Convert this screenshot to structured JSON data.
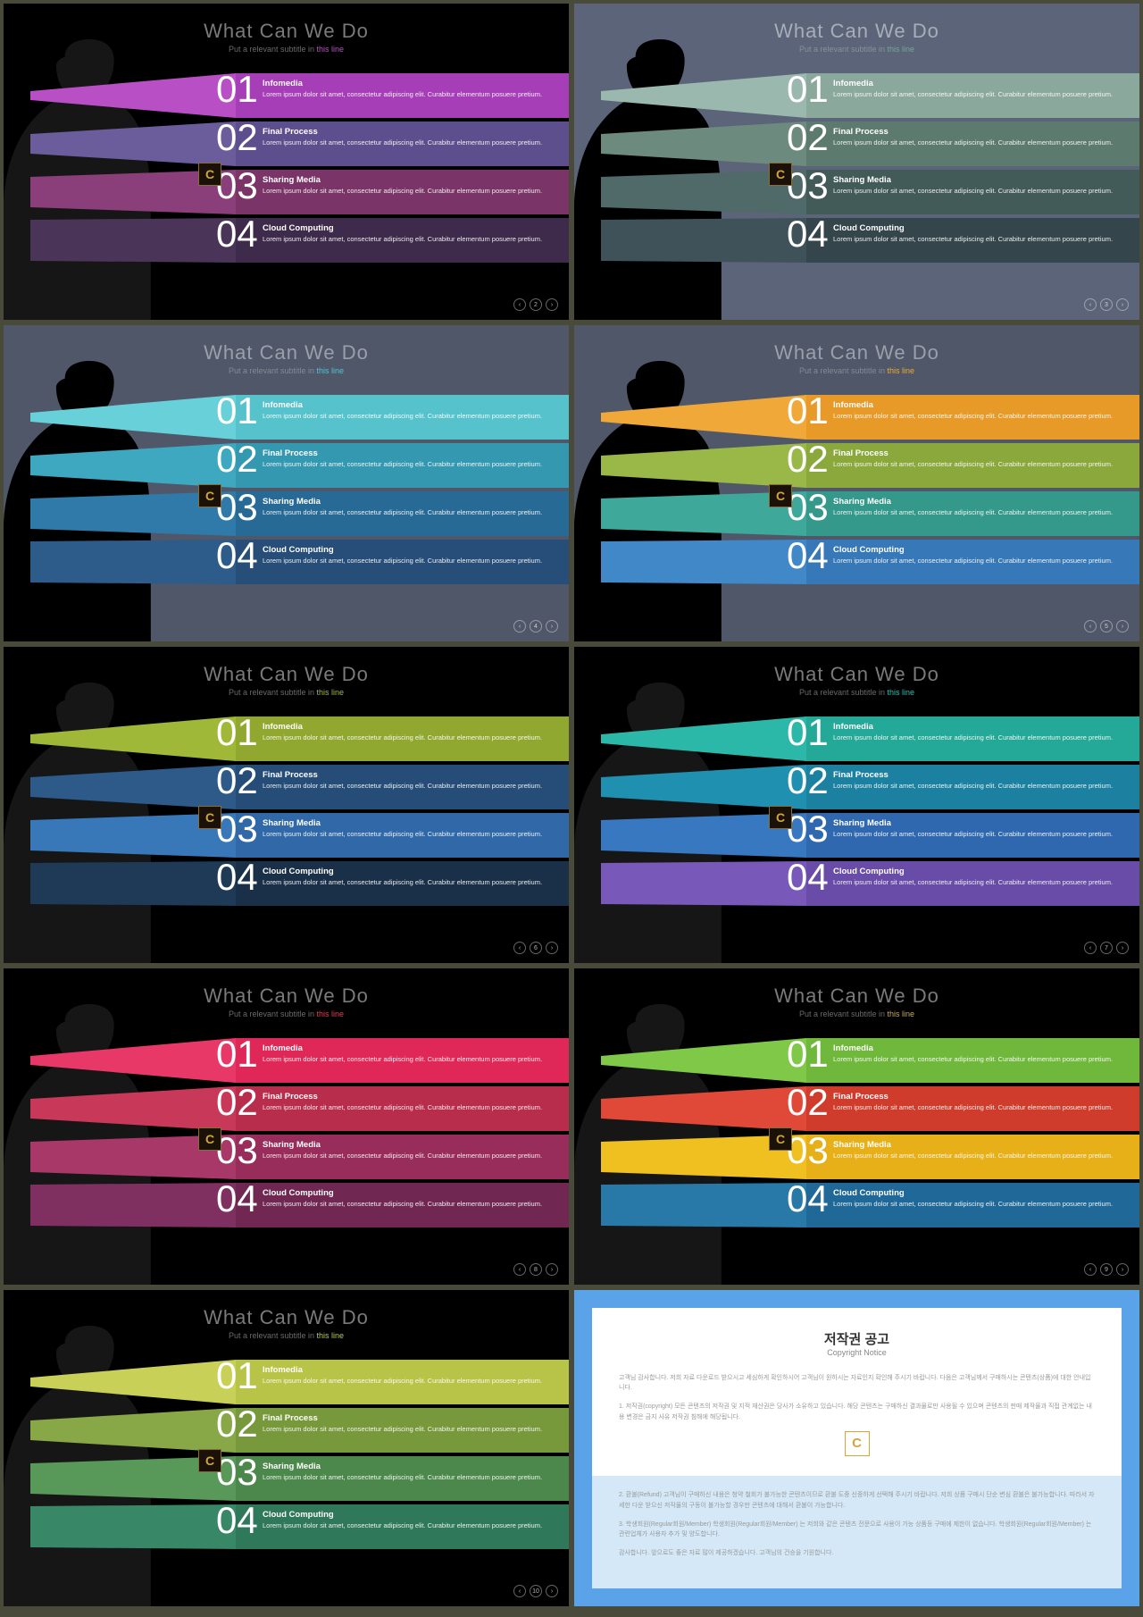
{
  "frame_border": "#4a4a3a",
  "common": {
    "title": "What Can We Do",
    "subtitle_prefix": "Put a relevant subtitle in ",
    "subtitle_accent": "this line",
    "numbers": [
      "01",
      "02",
      "03",
      "04"
    ],
    "items": [
      {
        "title": "Infomedia",
        "desc": "Lorem ipsum dolor sit amet, consectetur adipiscing elit. Curabitur elementum posuere pretium."
      },
      {
        "title": "Final Process",
        "desc": "Lorem ipsum dolor sit amet, consectetur adipiscing elit. Curabitur elementum posuere pretium."
      },
      {
        "title": "Sharing Media",
        "desc": "Lorem ipsum dolor sit amet, consectetur adipiscing elit. Curabitur elementum posuere pretium."
      },
      {
        "title": "Cloud Computing",
        "desc": "Lorem ipsum dolor sit amet, consectetur adipiscing elit. Curabitur elementum posuere pretium."
      }
    ],
    "logo_letter": "C",
    "pager_symbols": [
      "‹",
      "",
      "›"
    ]
  },
  "slides": [
    {
      "page": "2",
      "bg": "#000000",
      "title_color": "#7a7a7a",
      "sub_color": "#6a6a6a",
      "accent_color": "#b84fc4",
      "silhouette_color": "#161616",
      "bands": [
        {
          "wedge": "#b84fc4",
          "flat": "#a63eb8"
        },
        {
          "wedge": "#6b5d9b",
          "flat": "#5d4f8d"
        },
        {
          "wedge": "#8a3e7a",
          "flat": "#7a3468"
        },
        {
          "wedge": "#4a3458",
          "flat": "#3e2a4a"
        }
      ]
    },
    {
      "page": "3",
      "bg": "#5b6478",
      "title_color": "#a8aeb8",
      "sub_color": "#8a909a",
      "accent_color": "#6fa89a",
      "silhouette_color": "#000000",
      "bands": [
        {
          "wedge": "#9ab8ad",
          "flat": "#8aa89c"
        },
        {
          "wedge": "#6d8a7f",
          "flat": "#5d7a6f"
        },
        {
          "wedge": "#4f6a68",
          "flat": "#425a58"
        },
        {
          "wedge": "#3f525a",
          "flat": "#34454c"
        }
      ]
    },
    {
      "page": "4",
      "bg": "#4f5768",
      "title_color": "#9aa0ab",
      "sub_color": "#848a94",
      "accent_color": "#4fc4d4",
      "silhouette_color": "#000000",
      "bands": [
        {
          "wedge": "#68d0d8",
          "flat": "#56c2cc"
        },
        {
          "wedge": "#3ea8c0",
          "flat": "#3498b0"
        },
        {
          "wedge": "#2f7aa8",
          "flat": "#286a96"
        },
        {
          "wedge": "#2d5b8a",
          "flat": "#264e78"
        }
      ]
    },
    {
      "page": "5",
      "bg": "#4f5768",
      "title_color": "#9aa0ab",
      "sub_color": "#848a94",
      "accent_color": "#f0a838",
      "silhouette_color": "#000000",
      "bands": [
        {
          "wedge": "#f0a838",
          "flat": "#e89a28"
        },
        {
          "wedge": "#9ab848",
          "flat": "#8aa83c"
        },
        {
          "wedge": "#3ea89a",
          "flat": "#34988a"
        },
        {
          "wedge": "#4088c8",
          "flat": "#3678b8"
        }
      ]
    },
    {
      "page": "6",
      "bg": "#000000",
      "title_color": "#7a7a7a",
      "sub_color": "#6a6a6a",
      "accent_color": "#a0b838",
      "silhouette_color": "#161616",
      "bands": [
        {
          "wedge": "#a0b838",
          "flat": "#90a830"
        },
        {
          "wedge": "#2d5a88",
          "flat": "#264d78"
        },
        {
          "wedge": "#3878b8",
          "flat": "#3068a8"
        },
        {
          "wedge": "#1f3a56",
          "flat": "#1a3048"
        }
      ]
    },
    {
      "page": "7",
      "bg": "#000000",
      "title_color": "#7a7a7a",
      "sub_color": "#6a6a6a",
      "accent_color": "#28c0b0",
      "silhouette_color": "#161616",
      "bands": [
        {
          "wedge": "#2cb8a8",
          "flat": "#24a898"
        },
        {
          "wedge": "#2090b0",
          "flat": "#1c80a0"
        },
        {
          "wedge": "#3878c0",
          "flat": "#3068b0"
        },
        {
          "wedge": "#7858b8",
          "flat": "#684ca8"
        }
      ]
    },
    {
      "page": "8",
      "bg": "#000000",
      "title_color": "#7a7a7a",
      "sub_color": "#6a6a6a",
      "accent_color": "#e8385a",
      "silhouette_color": "#161616",
      "bands": [
        {
          "wedge": "#e83868",
          "flat": "#e02858"
        },
        {
          "wedge": "#c83858",
          "flat": "#b82c4c"
        },
        {
          "wedge": "#a83868",
          "flat": "#982c5a"
        },
        {
          "wedge": "#803060",
          "flat": "#702852"
        }
      ]
    },
    {
      "page": "9",
      "bg": "#000000",
      "title_color": "#7a7a7a",
      "sub_color": "#6a6a6a",
      "accent_color": "#c8a858",
      "silhouette_color": "#161616",
      "bands": [
        {
          "wedge": "#80c848",
          "flat": "#70b83c"
        },
        {
          "wedge": "#e04838",
          "flat": "#d03c2c"
        },
        {
          "wedge": "#f0c020",
          "flat": "#e8b018"
        },
        {
          "wedge": "#2878a8",
          "flat": "#206898"
        }
      ]
    },
    {
      "page": "10",
      "bg": "#000000",
      "title_color": "#7a7a7a",
      "sub_color": "#6a6a6a",
      "accent_color": "#b8c848",
      "silhouette_color": "#161616",
      "bands": [
        {
          "wedge": "#c8d058",
          "flat": "#b8c448"
        },
        {
          "wedge": "#88a848",
          "flat": "#78983c"
        },
        {
          "wedge": "#589858",
          "flat": "#4c884c"
        },
        {
          "wedge": "#388868",
          "flat": "#30785a"
        }
      ]
    }
  ],
  "copyright": {
    "bg_outer": "#5ba3e8",
    "bg_upper": "#ffffff",
    "bg_lower": "#d4e8f7",
    "title_ko": "저작권 공고",
    "title_en": "Copyright Notice",
    "lines": [
      "고객님 감사합니다. 저희 자료 다운로드 받으시고 세심하게 확인하시어 고객님이 원하시는 자료인지 확인해 주시기 바랍니다. 다음은 고객님께서 구매하시는 콘텐츠(상품)에 대한 안내입니다.",
      "1. 저작권(copyright) 모든 콘텐츠의 저작권 및 지적 재산권은 당사가 소유하고 있습니다. 해당 콘텐츠는 구매하신 결과물로만 사용될 수 있으며 콘텐츠의 판매 제작물과 직접 관계없는 내용 변경은 금지 사유 저작권 침해에 해당됩니다.",
      "2. 환불(Refund) 고객님이 구매하신 내용은 청약 철회가 불가능한 콘텐츠이므로 환불 도중 신중하게 선택해 주시기 바랍니다. 저희 상품 구매시 단순 변심 환불은 불가능합니다. 따라서 자세한 다운 받으신 저작물의 구동이 불가능할 경우만 콘텐츠에 대해서 환불이 가능합니다.",
      "3. 학생회원(Regular회원/Member) 학생회원(Regular회원/Member) 는 저희와 같은 콘텐츠 전문으로 사용이 가능 상품등 구매에 제한이 없습니다. 학생회원(Regular회원/Member) 는 관련업체가 사용자 추가 및 양도합니다.",
      "감사합니다. 앞으로도 좋은 자료 많이 제공하겠습니다. 고객님의 건승을 기원합니다."
    ]
  }
}
